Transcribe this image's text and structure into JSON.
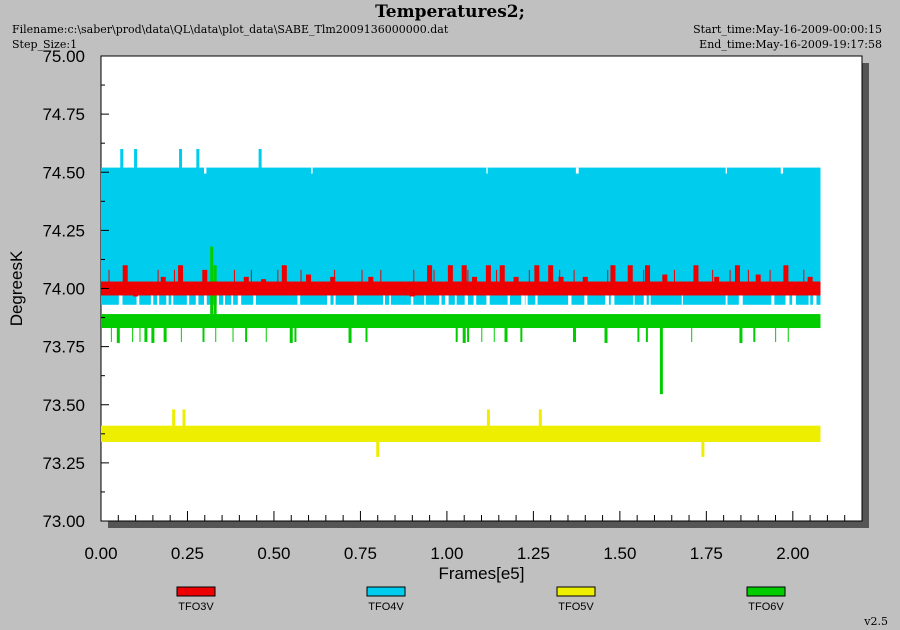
{
  "header": {
    "title": "Temperatures2;",
    "filename": "Filename:c:\\saber\\prod\\data\\QL\\data\\plot_data\\SABE_Tlm2009136000000.dat",
    "step_size": "Step_Size:1",
    "start_time": "Start_time:May-16-2009-00:00:15",
    "end_time": "End_time:May-16-2009-19:17:58"
  },
  "version": "v2.5",
  "colors": {
    "background": "#c0c0c0",
    "plot_area": "#ffffff",
    "TFO3V": "#ee0000",
    "TFO4V": "#00ccee",
    "TFO5V": "#eeee00",
    "TFO6V": "#00cc00"
  },
  "chart_data": {
    "type": "line",
    "title": "Temperatures2;",
    "xlabel": "Frames[e5]",
    "ylabel": "DegreesK",
    "xlim": [
      0.0,
      2.2
    ],
    "ylim": [
      73.0,
      75.0
    ],
    "x_ticks": [
      "0.00",
      "0.25",
      "0.50",
      "0.75",
      "1.00",
      "1.25",
      "1.50",
      "1.75",
      "2.00"
    ],
    "y_ticks": [
      "73.00",
      "73.25",
      "73.50",
      "73.75",
      "74.00",
      "74.25",
      "74.50",
      "74.75",
      "75.00"
    ],
    "grid": false,
    "legend_position": "bottom",
    "x_end": 2.08,
    "series": [
      {
        "name": "TFO3V",
        "color": "#ee0000",
        "band": [
          73.97,
          74.03
        ],
        "spikes": [
          [
            0.07,
            74.1
          ],
          [
            0.1,
            74.0
          ],
          [
            0.18,
            74.05
          ],
          [
            0.23,
            74.1
          ],
          [
            0.3,
            74.08
          ],
          [
            0.42,
            74.05
          ],
          [
            0.47,
            74.04
          ],
          [
            0.53,
            74.1
          ],
          [
            0.6,
            74.06
          ],
          [
            0.67,
            74.05
          ],
          [
            0.78,
            74.05
          ],
          [
            0.9,
            74.03
          ],
          [
            0.95,
            74.1
          ],
          [
            1.01,
            74.1
          ],
          [
            1.05,
            74.1
          ],
          [
            1.08,
            74.05
          ],
          [
            1.12,
            74.1
          ],
          [
            1.16,
            74.1
          ],
          [
            1.2,
            74.05
          ],
          [
            1.26,
            74.1
          ],
          [
            1.3,
            74.1
          ],
          [
            1.33,
            74.05
          ],
          [
            1.4,
            74.05
          ],
          [
            1.48,
            74.1
          ],
          [
            1.53,
            74.1
          ],
          [
            1.58,
            74.1
          ],
          [
            1.63,
            74.06
          ],
          [
            1.72,
            74.1
          ],
          [
            1.78,
            74.05
          ],
          [
            1.84,
            74.1
          ],
          [
            1.9,
            74.06
          ],
          [
            1.98,
            74.1
          ],
          [
            2.05,
            74.05
          ]
        ]
      },
      {
        "name": "TFO4V",
        "color": "#00ccee",
        "band": [
          73.93,
          74.52
        ],
        "spikes": [
          [
            0.06,
            74.6
          ],
          [
            0.1,
            74.6
          ],
          [
            0.23,
            74.6
          ],
          [
            0.28,
            74.6
          ],
          [
            0.46,
            74.6
          ]
        ]
      },
      {
        "name": "TFO5V",
        "color": "#eeee00",
        "band": [
          73.34,
          73.41
        ],
        "spikes": [
          [
            0.21,
            73.48
          ],
          [
            0.24,
            73.48
          ],
          [
            0.8,
            73.28
          ],
          [
            1.12,
            73.48
          ],
          [
            1.27,
            73.48
          ],
          [
            1.74,
            73.28
          ]
        ]
      },
      {
        "name": "TFO6V",
        "color": "#00cc00",
        "band": [
          73.83,
          73.89
        ],
        "spikes": [
          [
            0.32,
            74.18
          ],
          [
            0.33,
            74.1
          ],
          [
            1.62,
            73.55
          ],
          [
            0.05,
            73.77
          ],
          [
            0.15,
            73.77
          ],
          [
            0.55,
            73.77
          ],
          [
            0.72,
            73.77
          ],
          [
            1.05,
            73.77
          ],
          [
            1.46,
            73.77
          ],
          [
            1.85,
            73.77
          ]
        ]
      }
    ]
  }
}
